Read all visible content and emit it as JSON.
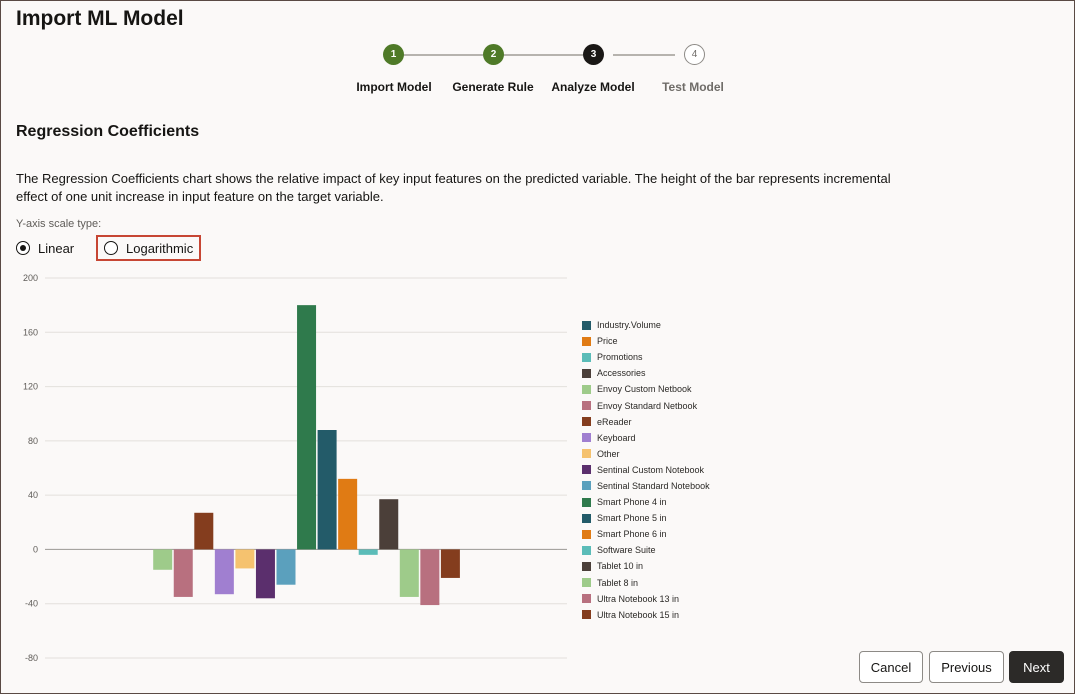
{
  "page": {
    "title": "Import ML Model"
  },
  "stepper": {
    "steps": [
      {
        "number": "1",
        "label": "Import Model",
        "state": "done"
      },
      {
        "number": "2",
        "label": "Generate Rule",
        "state": "done"
      },
      {
        "number": "3",
        "label": "Analyze Model",
        "state": "current"
      },
      {
        "number": "4",
        "label": "Test Model",
        "state": "todo"
      }
    ]
  },
  "section": {
    "title": "Regression Coefficients",
    "description": "The Regression Coefficients chart shows the relative impact of key input features on the predicted variable. The height of the bar represents incremental effect of one unit increase in input feature on the target variable."
  },
  "scale": {
    "label": "Y-axis scale type:",
    "options": [
      {
        "label": "Linear",
        "selected": true
      },
      {
        "label": "Logarithmic",
        "selected": false
      }
    ]
  },
  "chart_data": {
    "type": "bar",
    "title": "",
    "xlabel": "",
    "ylabel": "",
    "ylim": [
      -80,
      200
    ],
    "yticks": [
      "200",
      "160",
      "120",
      "80",
      "40",
      "0",
      "-40",
      "-80"
    ],
    "grid": true,
    "legend_position": "right",
    "categories": [
      "Industry.Volume",
      "Price",
      "Promotions",
      "Accessories",
      "Envoy Custom Netbook",
      "Envoy Standard Netbook",
      "eReader",
      "Keyboard",
      "Other",
      "Sentinal Custom Notebook",
      "Sentinal Standard Notebook",
      "Smart Phone 4 in",
      "Smart Phone 5 in",
      "Smart Phone 6 in",
      "Software Suite",
      "Tablet 10 in",
      "Tablet 8 in",
      "Ultra Notebook 13 in",
      "Ultra Notebook 15 in"
    ],
    "values": [
      0,
      0,
      0,
      0,
      -15,
      -35,
      27,
      -33,
      -14,
      -36,
      -26,
      180,
      88,
      52,
      -4,
      37,
      -35,
      -41,
      -21
    ],
    "colors": [
      "#235b69",
      "#e07b14",
      "#5bbcb8",
      "#4b3f39",
      "#9ecb8a",
      "#b8707f",
      "#843d1e",
      "#a07fd0",
      "#f5c26f",
      "#5b2f6d",
      "#5ba0bd",
      "#2f7a4c",
      "#235b69",
      "#e07b14",
      "#5bbcb8",
      "#4b3f39",
      "#9ecb8a",
      "#b8707f",
      "#843d1e"
    ]
  },
  "buttons": {
    "cancel": "Cancel",
    "previous": "Previous",
    "next": "Next"
  }
}
